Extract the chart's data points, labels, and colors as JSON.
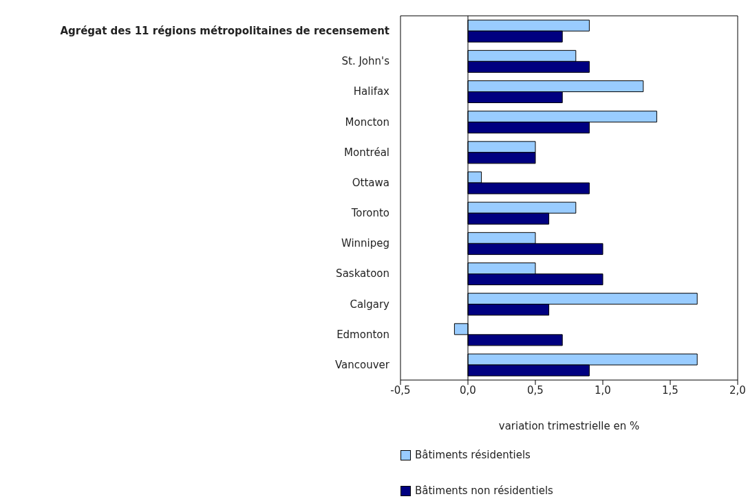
{
  "chart_data": {
    "type": "bar",
    "orientation": "horizontal",
    "xlabel": "variation trimestrielle en %",
    "categories": [
      "Agrégat des 11 régions métropolitaines de recensement",
      "St. John's",
      "Halifax",
      "Moncton",
      "Montréal",
      "Ottawa",
      "Toronto",
      "Winnipeg",
      "Saskatoon",
      "Calgary",
      "Edmonton",
      "Vancouver"
    ],
    "series": [
      {
        "name": "Bâtiments résidentiels",
        "color": "#99ccff",
        "values": [
          0.9,
          0.8,
          1.3,
          1.4,
          0.5,
          0.1,
          0.8,
          0.5,
          0.5,
          1.7,
          -0.1,
          1.7
        ]
      },
      {
        "name": "Bâtiments non résidentiels",
        "color": "#000080",
        "values": [
          0.7,
          0.9,
          0.7,
          0.9,
          0.5,
          0.9,
          0.6,
          1.0,
          1.0,
          0.6,
          0.7,
          0.9
        ]
      }
    ],
    "xlim": [
      -0.5,
      2.0
    ],
    "xticks": [
      {
        "value": -0.5,
        "label": "-0,5"
      },
      {
        "value": 0,
        "label": "0,0"
      },
      {
        "value": 0.5,
        "label": "0,5"
      },
      {
        "value": 1.0,
        "label": "1,0"
      },
      {
        "value": 1.5,
        "label": "1,5"
      },
      {
        "value": 2.0,
        "label": "2,0"
      }
    ],
    "ref_lines": [
      {
        "axis": "x",
        "value": 0,
        "color": "#000000"
      }
    ],
    "grid": false,
    "legend": "bottom"
  }
}
